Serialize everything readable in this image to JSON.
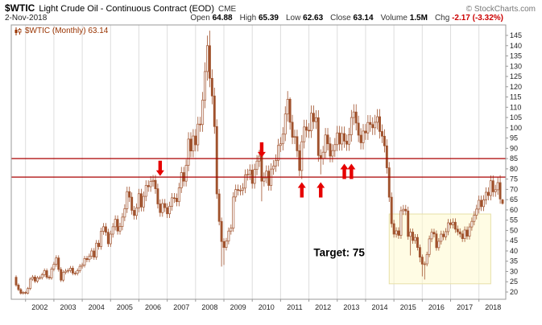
{
  "header": {
    "symbol": "$WTIC",
    "title": "Light Crude Oil - Continuous Contract (EOD)",
    "exchange": "CME",
    "copyright": "© StockCharts.com",
    "date": "2-Nov-2018",
    "quote": {
      "open_label": "Open",
      "open_value": "64.88",
      "high_label": "High",
      "high_value": "65.39",
      "low_label": "Low",
      "low_value": "62.63",
      "close_label": "Close",
      "close_value": "63.14",
      "volume_label": "Volume",
      "volume_value": "1.5M",
      "chg_label": "Chg",
      "chg_value": "-2.17 (-3.32%)"
    }
  },
  "series_label": "$WTIC (Monthly) 63.14",
  "colors": {
    "candle": "#A0522D",
    "candle_up_fill": "#FFFFFF",
    "hline": "#AA0000",
    "arrow": "#E60000",
    "box_fill": "#FFFACD",
    "box_stroke": "#E6DFA8",
    "grid": "#DDDDDD",
    "border": "#999999",
    "axis_text": "#222222",
    "chg": "#CC0000",
    "series_label": "#993300"
  },
  "chart_data": {
    "type": "candlestick",
    "title": "$WTIC (Monthly)",
    "frequency": "monthly",
    "xlabel": "",
    "ylabel": "",
    "ylim": [
      17,
      148
    ],
    "y_ticks": [
      20,
      25,
      30,
      35,
      40,
      45,
      50,
      55,
      60,
      65,
      70,
      75,
      80,
      85,
      90,
      95,
      100,
      105,
      110,
      115,
      120,
      125,
      130,
      135,
      140,
      145
    ],
    "x_tick_years": [
      2002,
      2003,
      2004,
      2005,
      2006,
      2007,
      2008,
      2009,
      2010,
      2011,
      2012,
      2013,
      2014,
      2015,
      2016,
      2017,
      2018
    ],
    "legend_position": "top-left",
    "grid": "vertical-only",
    "initial_prev_close": 27.2,
    "series": [
      {
        "year": 2001,
        "start_month": 9,
        "closes": [
          23.4,
          21.2,
          19.4,
          19.8
        ]
      },
      {
        "year": 2002,
        "start_month": 1,
        "closes": [
          19.5,
          21.7,
          26.3,
          27.3,
          25.3,
          26.9,
          27.0,
          28.4,
          30.4,
          27.2,
          26.9,
          31.2
        ]
      },
      {
        "year": 2003,
        "start_month": 1,
        "closes": [
          33.5,
          36.6,
          31.0,
          25.8,
          29.6,
          30.2,
          30.5,
          31.6,
          29.2,
          29.1,
          30.4,
          32.5
        ]
      },
      {
        "year": 2004,
        "start_month": 1,
        "closes": [
          33.1,
          36.3,
          35.8,
          37.4,
          40.0,
          37.0,
          43.8,
          42.1,
          49.6,
          51.8,
          49.1,
          43.5
        ]
      },
      {
        "year": 2005,
        "start_month": 1,
        "closes": [
          48.2,
          51.8,
          55.4,
          49.7,
          51.9,
          56.5,
          60.6,
          68.9,
          66.2,
          59.8,
          57.3,
          61.0
        ]
      },
      {
        "year": 2006,
        "start_month": 1,
        "closes": [
          67.9,
          61.4,
          66.6,
          71.9,
          71.3,
          73.9,
          74.4,
          70.3,
          62.9,
          58.7,
          63.1,
          61.1
        ]
      },
      {
        "year": 2007,
        "start_month": 1,
        "closes": [
          58.1,
          61.8,
          65.9,
          65.7,
          64.0,
          70.7,
          78.2,
          74.0,
          81.7,
          94.5,
          88.7,
          96.0
        ]
      },
      {
        "year": 2008,
        "start_month": 1,
        "closes": [
          91.7,
          101.8,
          101.6,
          113.5,
          127.4,
          140.0,
          124.1,
          115.5,
          100.6,
          67.8,
          54.4,
          44.6
        ]
      },
      {
        "year": 2009,
        "start_month": 1,
        "closes": [
          41.7,
          44.8,
          49.7,
          51.1,
          66.3,
          69.9,
          69.5,
          69.6,
          70.6,
          77.0,
          77.3,
          79.4
        ]
      },
      {
        "year": 2010,
        "start_month": 1,
        "closes": [
          72.9,
          79.7,
          83.8,
          86.2,
          74.0,
          75.6,
          78.9,
          71.9,
          79.9,
          81.4,
          84.1,
          91.4
        ]
      },
      {
        "year": 2011,
        "start_month": 1,
        "closes": [
          92.2,
          96.9,
          106.7,
          113.9,
          102.7,
          95.4,
          95.7,
          88.8,
          79.2,
          93.2,
          100.4,
          98.8
        ]
      },
      {
        "year": 2012,
        "start_month": 1,
        "closes": [
          98.5,
          107.1,
          103.0,
          104.9,
          86.5,
          85.0,
          88.1,
          96.5,
          92.2,
          86.2,
          88.9,
          91.8
        ]
      },
      {
        "year": 2013,
        "start_month": 1,
        "closes": [
          97.5,
          92.1,
          97.2,
          93.5,
          92.0,
          96.6,
          105.0,
          107.7,
          102.3,
          96.4,
          92.7,
          98.4
        ]
      },
      {
        "year": 2014,
        "start_month": 1,
        "closes": [
          97.5,
          102.6,
          101.6,
          100.0,
          102.7,
          105.4,
          98.2,
          95.9,
          91.2,
          80.5,
          66.2,
          53.3
        ]
      },
      {
        "year": 2015,
        "start_month": 1,
        "closes": [
          48.2,
          49.8,
          47.6,
          59.6,
          60.3,
          59.5,
          47.1,
          49.2,
          45.1,
          46.6,
          41.7,
          37.0
        ]
      },
      {
        "year": 2016,
        "start_month": 1,
        "closes": [
          33.6,
          33.7,
          38.3,
          45.9,
          49.1,
          48.3,
          41.6,
          44.7,
          48.2,
          46.9,
          49.4,
          53.7
        ]
      },
      {
        "year": 2017,
        "start_month": 1,
        "closes": [
          52.8,
          54.0,
          50.6,
          49.3,
          48.3,
          46.0,
          50.2,
          47.2,
          51.7,
          54.4,
          57.4,
          60.4
        ]
      },
      {
        "year": 2018,
        "start_month": 1,
        "closes": [
          64.7,
          61.6,
          64.9,
          68.6,
          67.0,
          74.2,
          68.8,
          69.8,
          73.3,
          65.3,
          63.14
        ]
      }
    ],
    "high_overrides": {
      "2008-07": 147.3,
      "2011-05": 114.8,
      "2018-10": 76.9
    },
    "low_overrides": {
      "2008-12": 32.4,
      "2009-01": 33.2,
      "2010-05": 64.2,
      "2011-10": 75.0,
      "2012-06": 77.3,
      "2015-08": 37.8,
      "2015-12": 34.5,
      "2016-01": 27.6,
      "2016-02": 26.1
    },
    "ohlc_overrides": {
      "2018-11": [
        64.88,
        65.39,
        62.63,
        63.14
      ]
    },
    "hlines": [
      85,
      76
    ],
    "arrows": [
      {
        "dir": "down",
        "month": "2006-10",
        "price": 76.5
      },
      {
        "dir": "down",
        "month": "2010-05",
        "price": 85.5
      },
      {
        "dir": "up",
        "month": "2011-10",
        "price": 73.5
      },
      {
        "dir": "up",
        "month": "2012-06",
        "price": 73.5
      },
      {
        "dir": "up",
        "month": "2013-04",
        "price": 82.5
      },
      {
        "dir": "up",
        "month": "2013-07",
        "price": 82.5
      }
    ],
    "shaded_box": {
      "from": "2014-11",
      "to": "2018-06",
      "top": 58,
      "bottom": 24
    },
    "annotations": [
      {
        "text": "Target: 75",
        "month": "2012-03",
        "price": 37.5
      }
    ],
    "last_close": 63.14
  }
}
